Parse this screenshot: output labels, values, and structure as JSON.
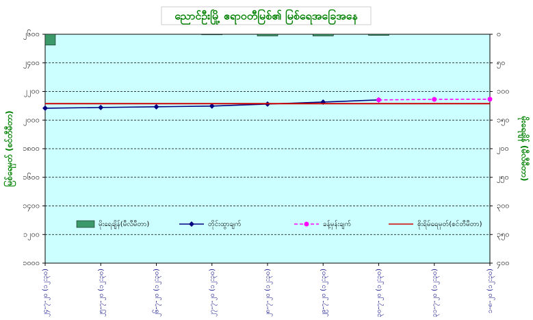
{
  "chart_data": {
    "type": "combo",
    "title": "ညောင်ဦးမြို့ ဧရာဝတီမြစ်၏ မြစ်ရေအခြေအနေ",
    "ylabel": "မြစ်ရေမှတ် (စင်တီမီတာ)",
    "y2label": "မိုးရေချိန် (မီလီမီတာ)",
    "categories": [
      "၂၄-၇-၂၀ (၁၂:၃၀)",
      "၂၅-၇-၂၀ (၁၂:၃၀)",
      "၂၆-၇-၂၀ (၁၂:၃၀)",
      "၂၇-၇-၂၀ (၁၂:၃၀)",
      "၂၈-၇-၂၀ (၁၂:၃၀)",
      "၂၉-၇-၂၀ (၁၂:၃၀)",
      "၃၀-၇-၂၀ (၁၂:၃၀)",
      "၃၁-၇-၂၀ (၁၂:၃၀)",
      "၁-၈-၂၀ (၁၂:၃၀)"
    ],
    "ylim": [
      1000,
      2600
    ],
    "yticks": [
      {
        "value": 2600,
        "label": "၂၆၀၀"
      },
      {
        "value": 2400,
        "label": "၂၄၀၀"
      },
      {
        "value": 2200,
        "label": "၂၂၀၀"
      },
      {
        "value": 2000,
        "label": "၂၀၀၀"
      },
      {
        "value": 1800,
        "label": "၁၈၀၀"
      },
      {
        "value": 1600,
        "label": "၁၆၀၀"
      },
      {
        "value": 1400,
        "label": "၁၄၀၀"
      },
      {
        "value": 1200,
        "label": "၁၂၀၀"
      },
      {
        "value": 1000,
        "label": "၁၀၀၀"
      }
    ],
    "y2lim": [
      0,
      400
    ],
    "y2_inverted": true,
    "y2ticks": [
      {
        "value": 0,
        "label": "၀"
      },
      {
        "value": 50,
        "label": "၅၀"
      },
      {
        "value": 100,
        "label": "၁၀၀"
      },
      {
        "value": 150,
        "label": "၁၅၀"
      },
      {
        "value": 200,
        "label": "၂၀၀"
      },
      {
        "value": 250,
        "label": "၂၅၀"
      },
      {
        "value": 300,
        "label": "၃၀၀"
      },
      {
        "value": 350,
        "label": "၃၅၀"
      },
      {
        "value": 400,
        "label": "၄၀၀"
      }
    ],
    "grid": true,
    "series": [
      {
        "name": "မိုးရေချိန်(မီလီမီတာ)",
        "kind": "bar",
        "axis": "y2",
        "color": "#3c9a6a",
        "values": [
          19,
          0,
          0,
          1,
          3,
          3,
          2,
          0,
          0
        ]
      },
      {
        "name": "တိုင်းထွာချက်",
        "kind": "line",
        "color": "#000080",
        "values": [
          2083,
          2088,
          2093,
          2098,
          2112,
          2126,
          2141,
          null,
          null
        ]
      },
      {
        "name": "ခန့်မှန်းချက်",
        "kind": "dashed",
        "color": "#ff00ff",
        "values": [
          null,
          null,
          null,
          null,
          null,
          null,
          2141,
          2145,
          2146
        ]
      },
      {
        "name": "စိုးရိမ်ရေမှတ်(စင်တီမီတာ)",
        "kind": "hline",
        "color": "#cc0000",
        "value": 2115
      }
    ]
  }
}
